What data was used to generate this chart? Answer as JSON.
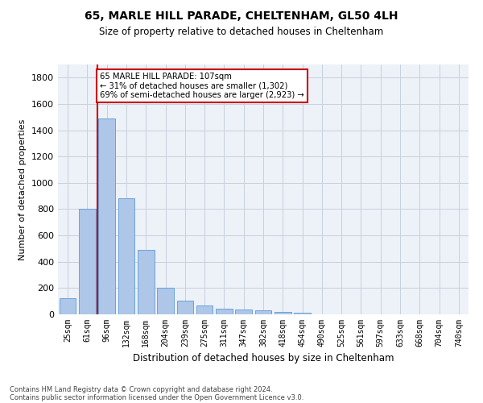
{
  "title1": "65, MARLE HILL PARADE, CHELTENHAM, GL50 4LH",
  "title2": "Size of property relative to detached houses in Cheltenham",
  "xlabel": "Distribution of detached houses by size in Cheltenham",
  "ylabel": "Number of detached properties",
  "categories": [
    "25sqm",
    "61sqm",
    "96sqm",
    "132sqm",
    "168sqm",
    "204sqm",
    "239sqm",
    "275sqm",
    "311sqm",
    "347sqm",
    "382sqm",
    "418sqm",
    "454sqm",
    "490sqm",
    "525sqm",
    "561sqm",
    "597sqm",
    "633sqm",
    "668sqm",
    "704sqm",
    "740sqm"
  ],
  "values": [
    120,
    800,
    1490,
    880,
    490,
    205,
    105,
    65,
    40,
    35,
    30,
    20,
    10,
    0,
    0,
    0,
    0,
    0,
    0,
    0,
    0
  ],
  "bar_color": "#aec6e8",
  "bar_edgecolor": "#5b9bd5",
  "vline_x": 1.5,
  "vline_color": "#cc0000",
  "annotation_text": "65 MARLE HILL PARADE: 107sqm\n← 31% of detached houses are smaller (1,302)\n69% of semi-detached houses are larger (2,923) →",
  "annotation_box_color": "#ffffff",
  "annotation_box_edgecolor": "#cc0000",
  "ylim": [
    0,
    1900
  ],
  "yticks": [
    0,
    200,
    400,
    600,
    800,
    1000,
    1200,
    1400,
    1600,
    1800
  ],
  "footer1": "Contains HM Land Registry data © Crown copyright and database right 2024.",
  "footer2": "Contains public sector information licensed under the Open Government Licence v3.0.",
  "grid_color": "#c8d0dc",
  "background_color": "#edf1f8"
}
